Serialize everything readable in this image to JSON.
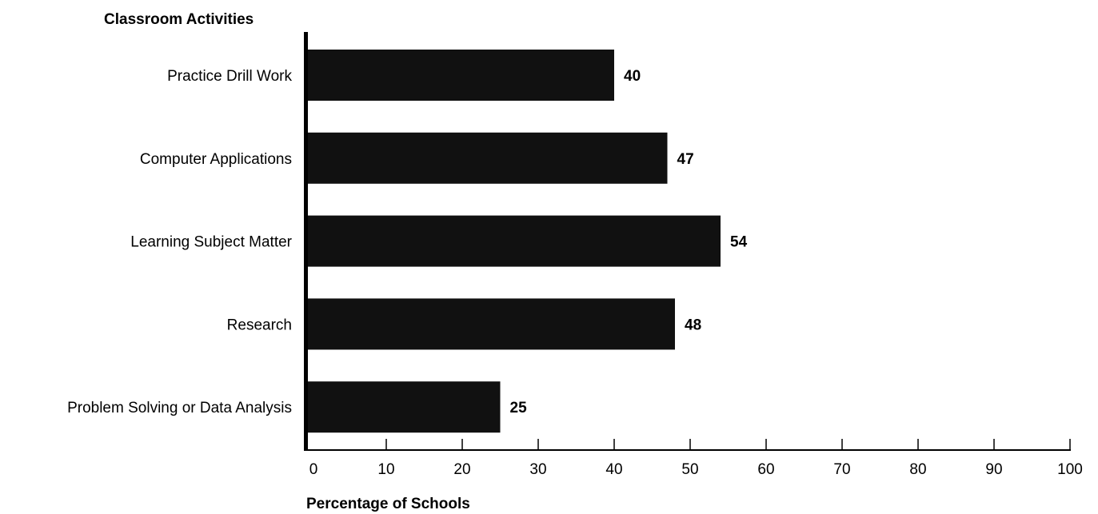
{
  "chart_data": {
    "type": "bar",
    "orientation": "horizontal",
    "title": "Classroom Activities",
    "xlabel": "Percentage of Schools",
    "ylabel": "",
    "categories": [
      "Practice Drill Work",
      "Computer Applications",
      "Learning Subject Matter",
      "Research",
      "Problem Solving or Data Analysis"
    ],
    "values": [
      40,
      47,
      54,
      48,
      25
    ],
    "value_labels": [
      "40",
      "47",
      "54",
      "48",
      "25"
    ],
    "xlim": [
      0,
      100
    ],
    "xticks": [
      0,
      10,
      20,
      30,
      40,
      50,
      60,
      70,
      80,
      90,
      100
    ],
    "xtick_labels": [
      "0",
      "10",
      "20",
      "30",
      "40",
      "50",
      "60",
      "70",
      "80",
      "90",
      "100"
    ],
    "grid": false,
    "legend": "none",
    "bar_color": "#111111",
    "axis_color": "#000000"
  }
}
